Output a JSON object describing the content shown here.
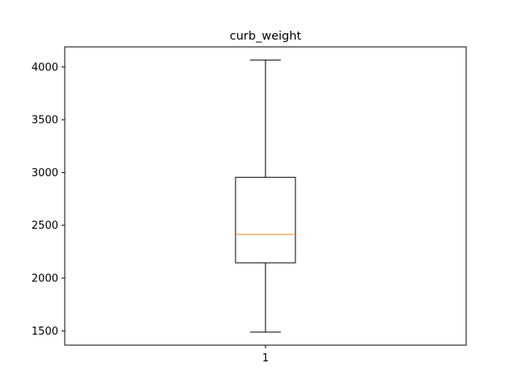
{
  "chart_data": {
    "type": "box",
    "title": "curb_weight",
    "xlabel": "",
    "ylabel": "",
    "categories": [
      "1"
    ],
    "boxes": [
      {
        "category": "1",
        "whisker_low": 1488,
        "q1": 2145,
        "median": 2414,
        "q3": 2955,
        "whisker_high": 4066
      }
    ],
    "ylim": [
      1365,
      4190
    ],
    "y_ticks": [
      1500,
      2000,
      2500,
      3000,
      3500,
      4000
    ],
    "y_tick_labels": [
      "1500",
      "2000",
      "2500",
      "3000",
      "3500",
      "4000"
    ],
    "grid": false,
    "median_color": "#ff7f0e",
    "box_color": "#000000"
  }
}
